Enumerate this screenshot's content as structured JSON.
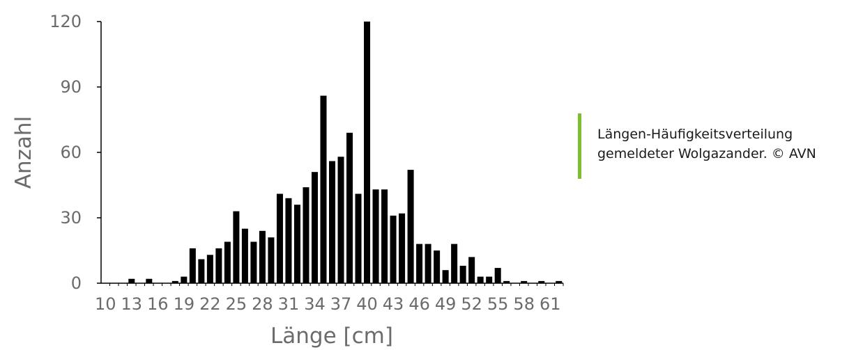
{
  "chart_data": {
    "type": "bar",
    "xlabel": "Länge [cm]",
    "ylabel": "Anzahl",
    "ylim": [
      0,
      120
    ],
    "yticks": [
      0,
      30,
      60,
      90,
      120
    ],
    "xtick_labels": [
      "10",
      "13",
      "16",
      "19",
      "22",
      "25",
      "28",
      "31",
      "34",
      "37",
      "40",
      "43",
      "46",
      "49",
      "52",
      "55",
      "58",
      "61"
    ],
    "categories": [
      10,
      11,
      12,
      13,
      14,
      15,
      16,
      17,
      18,
      19,
      20,
      21,
      22,
      23,
      24,
      25,
      26,
      27,
      28,
      29,
      30,
      31,
      32,
      33,
      34,
      35,
      36,
      37,
      38,
      39,
      40,
      41,
      42,
      43,
      44,
      45,
      46,
      47,
      48,
      49,
      50,
      51,
      52,
      53,
      54,
      55,
      56,
      57,
      58,
      59,
      60,
      61,
      62
    ],
    "values": [
      0,
      0,
      0,
      2,
      0,
      2,
      0,
      0,
      1,
      3,
      16,
      11,
      13,
      16,
      19,
      33,
      25,
      19,
      24,
      21,
      41,
      39,
      36,
      44,
      51,
      86,
      56,
      58,
      69,
      41,
      120,
      43,
      43,
      31,
      32,
      52,
      18,
      18,
      15,
      6,
      18,
      8,
      12,
      3,
      3,
      7,
      1,
      0,
      1,
      0,
      1,
      0,
      1
    ],
    "bar_color": "#000000",
    "axis_color": "#000000",
    "grid": false,
    "legend": "none"
  },
  "caption": {
    "text": "Längen-Häufigkeitsverteilung\ngemeldeter Wolgazander. © AVN",
    "accent_color": "#7cbf2e"
  }
}
